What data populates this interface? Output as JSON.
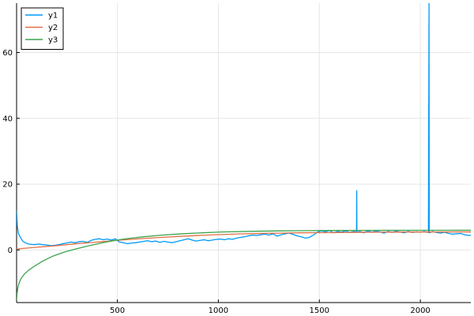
{
  "chart_data": {
    "type": "line",
    "title": "",
    "xlabel": "",
    "ylabel": "",
    "xlim": [
      1,
      2250
    ],
    "ylim": [
      -16,
      75
    ],
    "x_ticks": [
      500,
      1000,
      1500,
      2000
    ],
    "x_tick_labels": [
      "500",
      "1000",
      "1500",
      "2000"
    ],
    "y_ticks": [
      0,
      20,
      40,
      60
    ],
    "y_tick_labels": [
      "0",
      "20",
      "40",
      "60"
    ],
    "grid": true,
    "legend_position": "top-left",
    "series": [
      {
        "name": "y1",
        "color": "#009AFA",
        "x": [
          1,
          5,
          10,
          20,
          30,
          40,
          55,
          70,
          90,
          110,
          130,
          150,
          170,
          190,
          210,
          230,
          250,
          270,
          290,
          310,
          330,
          350,
          370,
          390,
          410,
          430,
          450,
          470,
          490,
          510,
          530,
          550,
          570,
          590,
          610,
          630,
          650,
          670,
          690,
          710,
          730,
          750,
          770,
          790,
          810,
          830,
          850,
          870,
          890,
          910,
          930,
          950,
          970,
          990,
          1010,
          1030,
          1050,
          1070,
          1090,
          1110,
          1130,
          1150,
          1170,
          1190,
          1210,
          1230,
          1250,
          1270,
          1290,
          1310,
          1330,
          1350,
          1370,
          1390,
          1410,
          1430,
          1450,
          1470,
          1490,
          1510,
          1530,
          1550,
          1570,
          1590,
          1610,
          1630,
          1650,
          1670,
          1684,
          1685,
          1686,
          1700,
          1720,
          1740,
          1760,
          1780,
          1800,
          1820,
          1840,
          1860,
          1880,
          1900,
          1920,
          1940,
          1960,
          1980,
          2000,
          2020,
          2040,
          2043,
          2044,
          2045,
          2060,
          2080,
          2100,
          2120,
          2140,
          2160,
          2180,
          2200,
          2220,
          2240,
          2250
        ],
        "y": [
          12,
          7,
          5,
          3.8,
          2.8,
          2.3,
          1.9,
          1.7,
          1.6,
          1.8,
          1.6,
          1.5,
          1.3,
          1.4,
          1.6,
          1.9,
          2.1,
          2.4,
          2.2,
          2.5,
          2.6,
          2.3,
          2.9,
          3.2,
          3.4,
          3.1,
          3.3,
          3.0,
          3.4,
          2.4,
          2.2,
          1.9,
          2.1,
          2.2,
          2.4,
          2.6,
          2.8,
          2.5,
          2.7,
          2.3,
          2.6,
          2.4,
          2.2,
          2.5,
          2.8,
          3.1,
          3.4,
          3.0,
          2.7,
          2.9,
          3.1,
          2.8,
          3.0,
          3.2,
          3.3,
          3.1,
          3.4,
          3.2,
          3.6,
          3.8,
          4.0,
          4.3,
          4.5,
          4.4,
          4.6,
          4.8,
          4.5,
          4.9,
          4.2,
          4.6,
          4.9,
          5.1,
          4.7,
          4.3,
          4.0,
          3.6,
          3.8,
          4.5,
          5.4,
          5.8,
          5.5,
          5.9,
          5.2,
          5.6,
          5.4,
          5.8,
          5.3,
          5.6,
          5.5,
          18,
          5.4,
          5.6,
          5.2,
          5.8,
          5.4,
          5.7,
          5.5,
          5.1,
          5.6,
          5.3,
          5.7,
          5.4,
          5.2,
          5.6,
          5.3,
          5.5,
          5.4,
          5.6,
          5.3,
          75,
          5.5,
          5.2,
          5.6,
          5.3,
          5.1,
          5.4,
          5.0,
          4.8,
          4.9,
          5.0,
          4.6,
          4.4,
          4.5
        ]
      },
      {
        "name": "y2",
        "color": "#E26F46",
        "x": [
          1,
          100,
          200,
          300,
          400,
          500,
          600,
          700,
          800,
          900,
          1000,
          1100,
          1200,
          1300,
          1400,
          1500,
          1600,
          1700,
          1800,
          1900,
          2000,
          2100,
          2200,
          2250
        ],
        "y": [
          0.3,
          0.8,
          1.3,
          1.9,
          2.4,
          2.9,
          3.35,
          3.75,
          4.1,
          4.4,
          4.65,
          4.85,
          5.0,
          5.1,
          5.2,
          5.25,
          5.3,
          5.35,
          5.4,
          5.42,
          5.44,
          5.45,
          5.47,
          5.48
        ]
      },
      {
        "name": "y3",
        "color": "#3DA44D",
        "x": [
          1,
          3,
          6,
          10,
          15,
          25,
          40,
          60,
          90,
          130,
          180,
          240,
          300,
          360,
          420,
          480,
          550,
          630,
          720,
          820,
          920,
          1020,
          1120,
          1220,
          1320,
          1420,
          1520,
          1620,
          1720,
          1820,
          1920,
          2020,
          2120,
          2250
        ],
        "y": [
          -15.2,
          -13.5,
          -12,
          -10.8,
          -9.8,
          -8.5,
          -7.3,
          -6.2,
          -4.9,
          -3.4,
          -1.9,
          -0.6,
          0.4,
          1.3,
          2.1,
          2.8,
          3.45,
          4.0,
          4.5,
          4.9,
          5.2,
          5.45,
          5.6,
          5.72,
          5.8,
          5.85,
          5.9,
          5.92,
          5.94,
          5.95,
          5.96,
          5.97,
          5.97,
          5.98
        ]
      }
    ]
  }
}
